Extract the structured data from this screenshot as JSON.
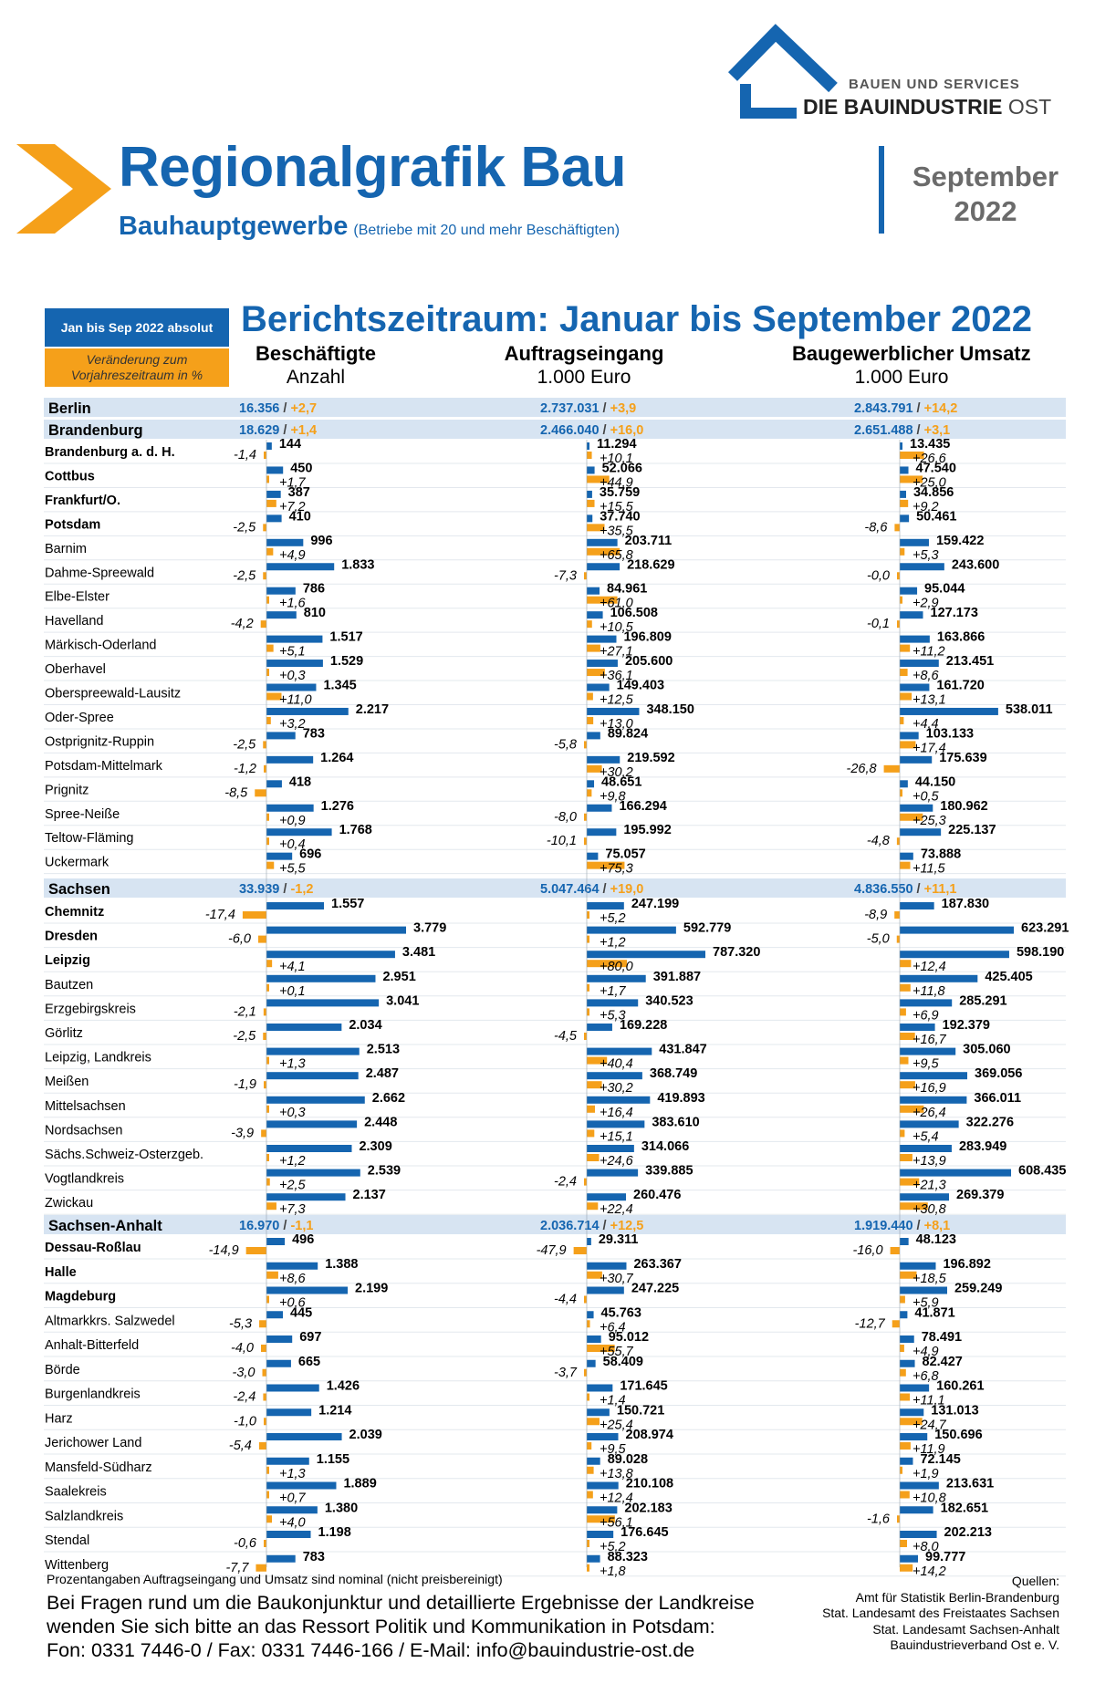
{
  "header": {
    "title": "Regionalgrafik Bau",
    "subtitle": "Bauhauptgewerbe",
    "subtitle_note": "(Betriebe mit 20 und mehr Beschäftigten)",
    "month": "September",
    "year": "2022",
    "logo_line1": "BAUEN UND SERVICES",
    "logo_line2": "DIE BAUINDUSTRIE",
    "logo_line2_suffix": "OST"
  },
  "legend": {
    "absolute_label": "Jan bis Sep 2022 absolut",
    "change_label": "Veränderung zum Vorjahreszeitraum in %"
  },
  "report_period": "Berichtszeitraum: Januar bis September 2022",
  "columns": [
    {
      "title": "Beschäftigte",
      "unit": "Anzahl"
    },
    {
      "title": "Auftragseingang",
      "unit": "1.000 Euro"
    },
    {
      "title": "Baugewerblicher Umsatz",
      "unit": "1.000 Euro"
    }
  ],
  "colors": {
    "blue": "#1565b0",
    "orange": "#f5a01a",
    "band": "#d7e4f2",
    "chevron": "#f5a01a"
  },
  "chart_data": {
    "type": "bar",
    "metrics": [
      "Beschäftigte",
      "Auftragseingang",
      "Baugewerblicher Umsatz"
    ],
    "groups": [
      {
        "name": "Berlin",
        "totals": [
          {
            "value": "16.356",
            "change": "+2,7"
          },
          {
            "value": "2.737.031",
            "change": "+3,9"
          },
          {
            "value": "2.843.791",
            "change": "+14,2"
          }
        ],
        "items": []
      },
      {
        "name": "Brandenburg",
        "totals": [
          {
            "value": "18.629",
            "change": "+1,4"
          },
          {
            "value": "2.466.040",
            "change": "+16,0"
          },
          {
            "value": "2.651.488",
            "change": "+3,1"
          }
        ],
        "items": [
          {
            "name": "Brandenburg a. d. H.",
            "city": true,
            "values": [
              144,
              11294,
              13435
            ],
            "changes": [
              -1.4,
              10.1,
              26.6
            ]
          },
          {
            "name": "Cottbus",
            "city": true,
            "values": [
              450,
              52066,
              47540
            ],
            "changes": [
              1.7,
              44.9,
              25.0
            ]
          },
          {
            "name": "Frankfurt/O.",
            "city": true,
            "values": [
              387,
              35759,
              34856
            ],
            "changes": [
              7.2,
              15.5,
              9.2
            ]
          },
          {
            "name": "Potsdam",
            "city": true,
            "values": [
              410,
              37740,
              50461
            ],
            "changes": [
              -2.5,
              35.5,
              -8.6
            ]
          },
          {
            "name": "Barnim",
            "city": false,
            "values": [
              996,
              203711,
              159422
            ],
            "changes": [
              4.9,
              65.8,
              5.3
            ]
          },
          {
            "name": "Dahme-Spreewald",
            "city": false,
            "values": [
              1833,
              218629,
              243600
            ],
            "changes": [
              -2.5,
              -7.3,
              -0.0
            ]
          },
          {
            "name": "Elbe-Elster",
            "city": false,
            "values": [
              786,
              84961,
              95044
            ],
            "changes": [
              1.6,
              61.0,
              2.9
            ]
          },
          {
            "name": "Havelland",
            "city": false,
            "values": [
              810,
              106508,
              127173
            ],
            "changes": [
              -4.2,
              10.5,
              -0.1
            ]
          },
          {
            "name": "Märkisch-Oderland",
            "city": false,
            "values": [
              1517,
              196809,
              163866
            ],
            "changes": [
              5.1,
              27.1,
              11.2
            ]
          },
          {
            "name": "Oberhavel",
            "city": false,
            "values": [
              1529,
              205600,
              213451
            ],
            "changes": [
              0.3,
              36.1,
              8.6
            ]
          },
          {
            "name": "Oberspreewald-Lausitz",
            "city": false,
            "values": [
              1345,
              149403,
              161720
            ],
            "changes": [
              11.0,
              12.5,
              13.1
            ]
          },
          {
            "name": "Oder-Spree",
            "city": false,
            "values": [
              2217,
              348150,
              538011
            ],
            "changes": [
              3.2,
              13.0,
              4.4
            ]
          },
          {
            "name": "Ostprignitz-Ruppin",
            "city": false,
            "values": [
              783,
              89824,
              103133
            ],
            "changes": [
              -2.5,
              -5.8,
              17.4
            ]
          },
          {
            "name": "Potsdam-Mittelmark",
            "city": false,
            "values": [
              1264,
              219592,
              175639
            ],
            "changes": [
              -1.2,
              30.2,
              -26.8
            ]
          },
          {
            "name": "Prignitz",
            "city": false,
            "values": [
              418,
              48651,
              44150
            ],
            "changes": [
              -8.5,
              9.8,
              0.5
            ]
          },
          {
            "name": "Spree-Neiße",
            "city": false,
            "values": [
              1276,
              166294,
              180962
            ],
            "changes": [
              0.9,
              -8.0,
              25.3
            ]
          },
          {
            "name": "Teltow-Fläming",
            "city": false,
            "values": [
              1768,
              195992,
              225137
            ],
            "changes": [
              0.4,
              -10.1,
              -4.8
            ]
          },
          {
            "name": "Uckermark",
            "city": false,
            "values": [
              696,
              75057,
              73888
            ],
            "changes": [
              5.5,
              75.3,
              11.5
            ]
          }
        ]
      },
      {
        "name": "Sachsen",
        "totals": [
          {
            "value": "33.939",
            "change": "-1,2"
          },
          {
            "value": "5.047.464",
            "change": "+19,0"
          },
          {
            "value": "4.836.550",
            "change": "+11,1"
          }
        ],
        "items": [
          {
            "name": "Chemnitz",
            "city": true,
            "values": [
              1557,
              247199,
              187830
            ],
            "changes": [
              -17.4,
              5.2,
              -8.9
            ]
          },
          {
            "name": "Dresden",
            "city": true,
            "values": [
              3779,
              592779,
              623291
            ],
            "changes": [
              -6.0,
              1.2,
              -5.0
            ]
          },
          {
            "name": "Leipzig",
            "city": true,
            "values": [
              3481,
              787320,
              598190
            ],
            "changes": [
              4.1,
              80.0,
              12.4
            ]
          },
          {
            "name": "Bautzen",
            "city": false,
            "values": [
              2951,
              391887,
              425405
            ],
            "changes": [
              0.1,
              1.7,
              11.8
            ]
          },
          {
            "name": "Erzgebirgskreis",
            "city": false,
            "values": [
              3041,
              340523,
              285291
            ],
            "changes": [
              -2.1,
              5.3,
              6.9
            ]
          },
          {
            "name": "Görlitz",
            "city": false,
            "values": [
              2034,
              169228,
              192379
            ],
            "changes": [
              -2.5,
              -4.5,
              16.7
            ]
          },
          {
            "name": "Leipzig, Landkreis",
            "city": false,
            "values": [
              2513,
              431847,
              305060
            ],
            "changes": [
              1.3,
              40.4,
              9.5
            ]
          },
          {
            "name": "Meißen",
            "city": false,
            "values": [
              2487,
              368749,
              369056
            ],
            "changes": [
              -1.9,
              30.2,
              16.9
            ]
          },
          {
            "name": "Mittelsachsen",
            "city": false,
            "values": [
              2662,
              419893,
              366011
            ],
            "changes": [
              0.3,
              16.4,
              26.4
            ]
          },
          {
            "name": "Nordsachsen",
            "city": false,
            "values": [
              2448,
              383610,
              322276
            ],
            "changes": [
              -3.9,
              15.1,
              5.4
            ]
          },
          {
            "name": "Sächs.Schweiz-Osterzgeb.",
            "city": false,
            "values": [
              2309,
              314066,
              283949
            ],
            "changes": [
              1.2,
              24.6,
              13.9
            ]
          },
          {
            "name": "Vogtlandkreis",
            "city": false,
            "values": [
              2539,
              339885,
              608435
            ],
            "changes": [
              2.5,
              -2.4,
              21.3
            ]
          },
          {
            "name": "Zwickau",
            "city": false,
            "values": [
              2137,
              260476,
              269379
            ],
            "changes": [
              7.3,
              22.4,
              30.8
            ]
          }
        ]
      },
      {
        "name": "Sachsen-Anhalt",
        "totals": [
          {
            "value": "16.970",
            "change": "-1,1"
          },
          {
            "value": "2.036.714",
            "change": "+12,5"
          },
          {
            "value": "1.919.440",
            "change": "+8,1"
          }
        ],
        "items": [
          {
            "name": "Dessau-Roßlau",
            "city": true,
            "values": [
              496,
              29311,
              48123
            ],
            "changes": [
              -14.9,
              -47.9,
              -16.0
            ]
          },
          {
            "name": "Halle",
            "city": true,
            "values": [
              1388,
              263367,
              196892
            ],
            "changes": [
              8.6,
              30.7,
              18.5
            ]
          },
          {
            "name": "Magdeburg",
            "city": true,
            "values": [
              2199,
              247225,
              259249
            ],
            "changes": [
              0.6,
              -4.4,
              5.9
            ]
          },
          {
            "name": "Altmarkkrs. Salzwedel",
            "city": false,
            "values": [
              445,
              45763,
              41871
            ],
            "changes": [
              -5.3,
              6.4,
              -12.7
            ]
          },
          {
            "name": "Anhalt-Bitterfeld",
            "city": false,
            "values": [
              697,
              95012,
              78491
            ],
            "changes": [
              -4.0,
              55.7,
              4.9
            ]
          },
          {
            "name": "Börde",
            "city": false,
            "values": [
              665,
              58409,
              82427
            ],
            "changes": [
              -3.0,
              -3.7,
              6.8
            ]
          },
          {
            "name": "Burgenlandkreis",
            "city": false,
            "values": [
              1426,
              171645,
              160261
            ],
            "changes": [
              -2.4,
              1.4,
              11.1
            ]
          },
          {
            "name": "Harz",
            "city": false,
            "values": [
              1214,
              150721,
              131013
            ],
            "changes": [
              -1.0,
              25.4,
              24.7
            ]
          },
          {
            "name": "Jerichower Land",
            "city": false,
            "values": [
              2039,
              208974,
              150696
            ],
            "changes": [
              -5.4,
              9.5,
              11.9
            ]
          },
          {
            "name": "Mansfeld-Südharz",
            "city": false,
            "values": [
              1155,
              89028,
              72145
            ],
            "changes": [
              1.3,
              13.8,
              1.9
            ]
          },
          {
            "name": "Saalekreis",
            "city": false,
            "values": [
              1889,
              210108,
              213631
            ],
            "changes": [
              0.7,
              12.4,
              10.8
            ]
          },
          {
            "name": "Salzlandkreis",
            "city": false,
            "values": [
              1380,
              202183,
              182651
            ],
            "changes": [
              4.0,
              56.1,
              -1.6
            ]
          },
          {
            "name": "Stendal",
            "city": false,
            "values": [
              1198,
              176645,
              202213
            ],
            "changes": [
              -0.6,
              5.2,
              8.0
            ]
          },
          {
            "name": "Wittenberg",
            "city": false,
            "values": [
              783,
              88323,
              99777
            ],
            "changes": [
              -7.7,
              1.8,
              14.2
            ]
          }
        ]
      }
    ]
  },
  "footer": {
    "note": "Prozentangaben Auftragseingang und Umsatz sind nominal (nicht preisbereinigt)",
    "contact_lines": [
      "Bei Fragen rund um die Baukonjunktur und detaillierte Ergebnisse der Landkreise",
      "wenden Sie sich bitte an das Ressort Politik und Kommunikation in Potsdam:",
      "Fon: 0331 7446-0 / Fax: 0331 7446-166 / E-Mail: info@bauindustrie-ost.de"
    ],
    "sources_title": "Quellen:",
    "sources": [
      "Amt für Statistik Berlin-Brandenburg",
      "Stat. Landesamt des Freistaates Sachsen",
      "Stat. Landesamt Sachsen-Anhalt",
      "Bauindustrieverband Ost e. V."
    ]
  }
}
